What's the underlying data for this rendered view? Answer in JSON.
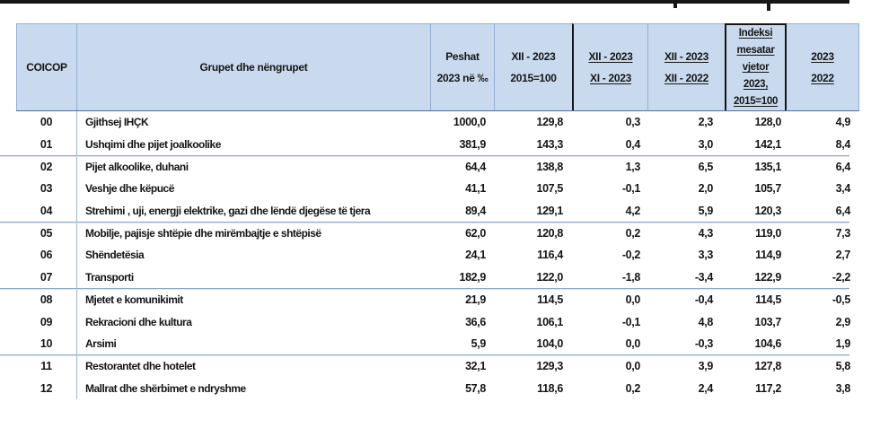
{
  "colors": {
    "header_fill": "#c9daef",
    "border_blue": "#8fafd6",
    "divider_blue": "#9ab9dc",
    "rule_dark": "#54708f",
    "sep_blue": "#8ea9c9",
    "ink": "#151515"
  },
  "table": {
    "headers": {
      "coicop": "COICOP",
      "groups": "Grupet dhe nëngrupet",
      "weights": "Peshat\n2023 në ‰",
      "index_dec": "XII - 2023\n2015=100",
      "mom": "XII - 2023\nXI - 2023",
      "yoy": "XII - 2023\nXII - 2022",
      "avg_index": "Indeksi\nmesatar\nvjetor\n2023,\n2015=100",
      "annual": "2023\n2022"
    },
    "rows": [
      {
        "code": "00",
        "name": "Gjithsej IHÇK",
        "values": [
          "1000,0",
          "129,8",
          "0,3",
          "2,3",
          "128,0",
          "4,9"
        ]
      },
      {
        "code": "01",
        "name": "Ushqimi dhe pijet joalkoolike",
        "values": [
          "381,9",
          "143,3",
          "0,4",
          "3,0",
          "142,1",
          "8,4"
        ]
      },
      {
        "code": "02",
        "name": "Pijet alkoolike, duhani",
        "values": [
          "64,4",
          "138,8",
          "1,3",
          "6,5",
          "135,1",
          "6,4"
        ]
      },
      {
        "code": "03",
        "name": "Veshje dhe këpucë",
        "values": [
          "41,1",
          "107,5",
          "-0,1",
          "2,0",
          "105,7",
          "3,4"
        ]
      },
      {
        "code": "04",
        "name": "Strehimi , uji, energji elektrike, gazi dhe lëndë djegëse të tjera",
        "values": [
          "89,4",
          "129,1",
          "4,2",
          "5,9",
          "120,3",
          "6,4"
        ]
      },
      {
        "code": "05",
        "name": "Mobilje, pajisje shtëpie dhe mirëmbajtje e shtëpisë",
        "values": [
          "62,0",
          "120,8",
          "0,2",
          "4,3",
          "119,0",
          "7,3"
        ]
      },
      {
        "code": "06",
        "name": "Shëndetësia",
        "values": [
          "24,1",
          "116,4",
          "-0,2",
          "3,3",
          "114,9",
          "2,7"
        ]
      },
      {
        "code": "07",
        "name": "Transporti",
        "values": [
          "182,9",
          "122,0",
          "-1,8",
          "-3,4",
          "122,9",
          "-2,2"
        ]
      },
      {
        "code": "08",
        "name": "Mjetet e komunikimit",
        "values": [
          "21,9",
          "114,5",
          "0,0",
          "-0,4",
          "114,5",
          "-0,5"
        ]
      },
      {
        "code": "09",
        "name": "Rekracioni dhe kultura",
        "values": [
          "36,6",
          "106,1",
          "-0,1",
          "4,8",
          "103,7",
          "2,9"
        ]
      },
      {
        "code": "10",
        "name": "Arsimi",
        "values": [
          "5,9",
          "104,0",
          "0,0",
          "-0,3",
          "104,6",
          "1,9"
        ]
      },
      {
        "code": "11",
        "name": "Restorantet dhe hotelet",
        "values": [
          "32,1",
          "129,3",
          "0,0",
          "3,9",
          "127,8",
          "5,8"
        ]
      },
      {
        "code": "12",
        "name": "Mallrat dhe shërbimet e ndryshme",
        "values": [
          "57,8",
          "118,6",
          "0,2",
          "2,4",
          "117,2",
          "3,8"
        ]
      }
    ],
    "group_breaks": [
      1,
      4,
      7,
      10
    ]
  }
}
